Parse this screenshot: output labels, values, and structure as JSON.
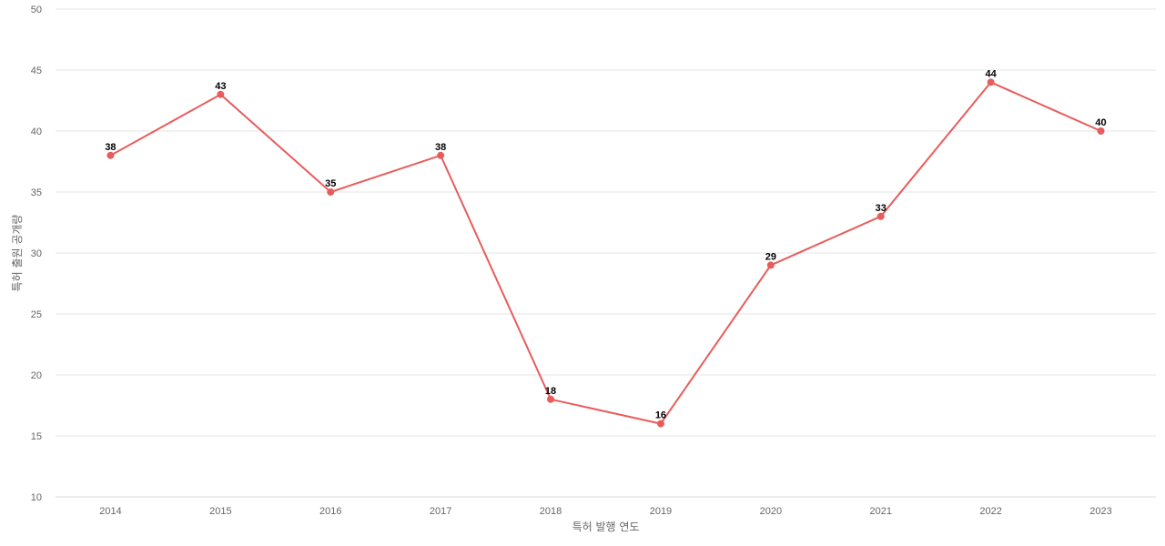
{
  "chart_data": {
    "type": "line",
    "title": "",
    "xlabel": "특허 발행 연도",
    "ylabel": "특허 출원 공개량",
    "categories": [
      "2014",
      "2015",
      "2016",
      "2017",
      "2018",
      "2019",
      "2020",
      "2021",
      "2022",
      "2023"
    ],
    "series": [
      {
        "values": [
          38,
          43,
          35,
          38,
          18,
          16,
          29,
          33,
          44,
          40
        ]
      }
    ],
    "ylim": [
      10,
      50
    ],
    "yticks": [
      10,
      15,
      20,
      25,
      30,
      35,
      40,
      45,
      50
    ],
    "grid": true,
    "data_labels": true,
    "colors": {
      "line": "#e85c5c",
      "marker": "#e85c5c"
    }
  }
}
